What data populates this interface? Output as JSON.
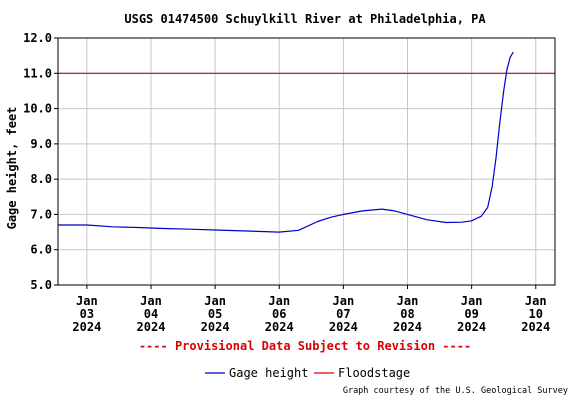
{
  "chart_data": {
    "type": "line",
    "title": "USGS 01474500 Schuylkill River at Philadelphia, PA",
    "ylabel": "Gage height, feet",
    "xlabel": "",
    "ylim": [
      5.0,
      12.0
    ],
    "yticks": [
      "12.0",
      "11.0",
      "10.0",
      "9.0",
      "8.0",
      "7.0",
      "6.0",
      "5.0"
    ],
    "xlim_days": [
      2.55,
      10.3
    ],
    "xticks": [
      {
        "day": 3,
        "lines": [
          "Jan",
          "03",
          "2024"
        ]
      },
      {
        "day": 4,
        "lines": [
          "Jan",
          "04",
          "2024"
        ]
      },
      {
        "day": 5,
        "lines": [
          "Jan",
          "05",
          "2024"
        ]
      },
      {
        "day": 6,
        "lines": [
          "Jan",
          "06",
          "2024"
        ]
      },
      {
        "day": 7,
        "lines": [
          "Jan",
          "07",
          "2024"
        ]
      },
      {
        "day": 8,
        "lines": [
          "Jan",
          "08",
          "2024"
        ]
      },
      {
        "day": 9,
        "lines": [
          "Jan",
          "09",
          "2024"
        ]
      },
      {
        "day": 10,
        "lines": [
          "Jan",
          "10",
          "2024"
        ]
      }
    ],
    "grid": true,
    "legend_position": "bottom",
    "series": [
      {
        "name": "Gage height",
        "color": "#0000cc",
        "x_day": [
          2.55,
          3.0,
          3.4,
          3.8,
          4.2,
          4.6,
          5.0,
          5.5,
          6.0,
          6.3,
          6.6,
          6.8,
          7.0,
          7.3,
          7.6,
          7.8,
          8.0,
          8.3,
          8.6,
          8.85,
          9.0,
          9.15,
          9.25,
          9.32,
          9.38,
          9.44,
          9.5,
          9.55,
          9.6,
          9.65
        ],
        "y": [
          6.7,
          6.7,
          6.65,
          6.63,
          6.6,
          6.58,
          6.56,
          6.53,
          6.5,
          6.55,
          6.8,
          6.92,
          7.0,
          7.1,
          7.15,
          7.1,
          7.0,
          6.85,
          6.77,
          6.78,
          6.82,
          6.95,
          7.2,
          7.8,
          8.6,
          9.6,
          10.5,
          11.1,
          11.45,
          11.6
        ]
      },
      {
        "name": "Floodstage",
        "color": "#dd0000",
        "x_day": [
          2.55,
          10.3
        ],
        "y": [
          11.0,
          11.0
        ]
      }
    ]
  },
  "notice": "---- Provisional Data Subject to Revision ----",
  "credit": "Graph courtesy of the U.S. Geological Survey",
  "legend": {
    "gage_label": "Gage height",
    "flood_label": "Floodstage"
  }
}
